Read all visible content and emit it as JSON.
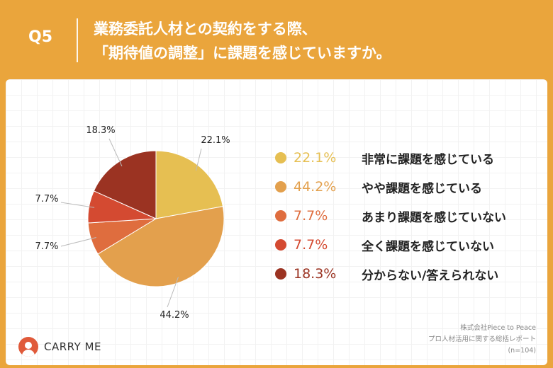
{
  "header": {
    "question": "Q5",
    "title_line1": "業務委託人材との契約をする際、",
    "title_line2": "「期待値の調整」に課題を感じていますか。"
  },
  "chart_data": {
    "type": "pie",
    "categories": [
      "非常に課題を感じている",
      "やや課題を感じている",
      "あまり課題を感じていない",
      "全く課題を感じていない",
      "分からない/答えられない"
    ],
    "values": [
      22.1,
      44.2,
      7.7,
      7.7,
      18.3
    ],
    "value_labels": [
      "22.1%",
      "44.2%",
      "7.7%",
      "7.7%",
      "18.3%"
    ],
    "colors": [
      "#e6bf52",
      "#e3a04d",
      "#df6d3e",
      "#d44a31",
      "#9b3322"
    ],
    "legend_position": "right"
  },
  "legend": [
    {
      "pct": "22.1%",
      "label": "非常に課題を感じている"
    },
    {
      "pct": "44.2%",
      "label": "やや課題を感じている"
    },
    {
      "pct": "7.7%",
      "label": "あまり課題を感じていない"
    },
    {
      "pct": "7.7%",
      "label": "全く課題を感じていない"
    },
    {
      "pct": "18.3%",
      "label": "分からない/答えられない"
    }
  ],
  "footer": {
    "logo_text": "CARRY ME",
    "source_line1": "株式会社Piece to Peace",
    "source_line2": "プロ人材活用に関する総括レポート",
    "source_line3": "(n=104)"
  }
}
